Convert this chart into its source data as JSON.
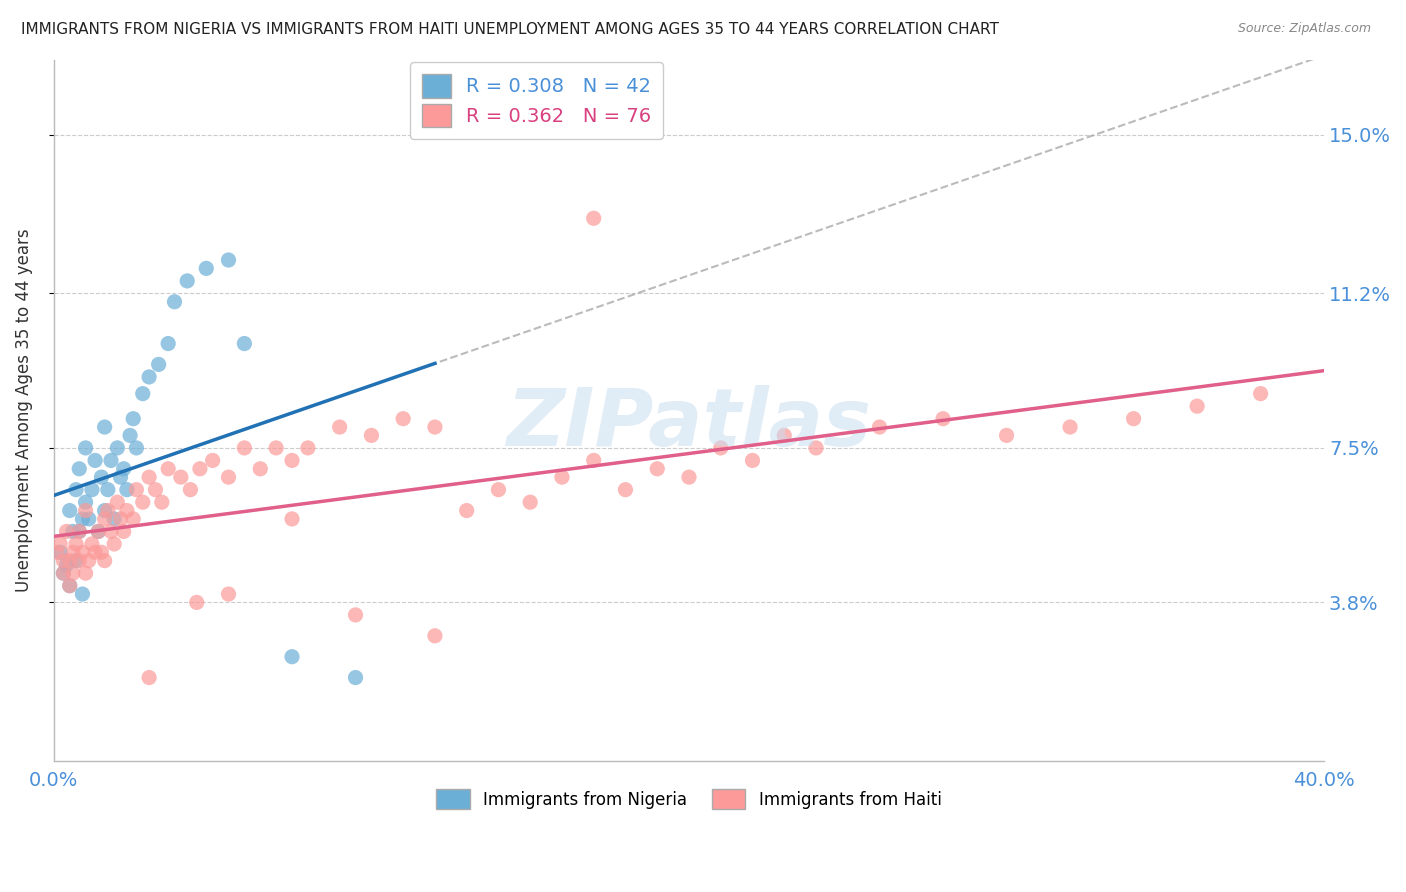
{
  "title": "IMMIGRANTS FROM NIGERIA VS IMMIGRANTS FROM HAITI UNEMPLOYMENT AMONG AGES 35 TO 44 YEARS CORRELATION CHART",
  "source": "Source: ZipAtlas.com",
  "ylabel": "Unemployment Among Ages 35 to 44 years",
  "xlim": [
    0.0,
    0.4
  ],
  "ylim": [
    0.0,
    0.168
  ],
  "yticks": [
    0.038,
    0.075,
    0.112,
    0.15
  ],
  "ytick_labels": [
    "3.8%",
    "7.5%",
    "11.2%",
    "15.0%"
  ],
  "nigeria_R": 0.308,
  "nigeria_N": 42,
  "haiti_R": 0.362,
  "haiti_N": 76,
  "nigeria_color": "#6baed6",
  "haiti_color": "#fb9a99",
  "nigeria_line_color": "#2171b5",
  "haiti_line_color": "#e0608a",
  "dashed_line_color": "#aaaaaa",
  "watermark": "ZIPatlas",
  "nigeria_x": [
    0.002,
    0.003,
    0.004,
    0.005,
    0.005,
    0.006,
    0.007,
    0.007,
    0.008,
    0.008,
    0.009,
    0.009,
    0.01,
    0.01,
    0.011,
    0.012,
    0.013,
    0.014,
    0.015,
    0.016,
    0.016,
    0.017,
    0.018,
    0.019,
    0.02,
    0.021,
    0.022,
    0.023,
    0.024,
    0.025,
    0.026,
    0.028,
    0.03,
    0.033,
    0.036,
    0.038,
    0.042,
    0.048,
    0.055,
    0.06,
    0.075,
    0.095
  ],
  "nigeria_y": [
    0.05,
    0.045,
    0.047,
    0.06,
    0.042,
    0.055,
    0.065,
    0.048,
    0.07,
    0.055,
    0.058,
    0.04,
    0.062,
    0.075,
    0.058,
    0.065,
    0.072,
    0.055,
    0.068,
    0.08,
    0.06,
    0.065,
    0.072,
    0.058,
    0.075,
    0.068,
    0.07,
    0.065,
    0.078,
    0.082,
    0.075,
    0.088,
    0.092,
    0.095,
    0.1,
    0.11,
    0.115,
    0.118,
    0.12,
    0.1,
    0.025,
    0.02
  ],
  "haiti_x": [
    0.001,
    0.002,
    0.003,
    0.003,
    0.004,
    0.005,
    0.005,
    0.006,
    0.006,
    0.007,
    0.008,
    0.008,
    0.009,
    0.01,
    0.01,
    0.011,
    0.012,
    0.013,
    0.014,
    0.015,
    0.016,
    0.016,
    0.017,
    0.018,
    0.019,
    0.02,
    0.021,
    0.022,
    0.023,
    0.025,
    0.026,
    0.028,
    0.03,
    0.032,
    0.034,
    0.036,
    0.04,
    0.043,
    0.046,
    0.05,
    0.055,
    0.06,
    0.065,
    0.07,
    0.075,
    0.08,
    0.09,
    0.1,
    0.11,
    0.12,
    0.13,
    0.14,
    0.15,
    0.16,
    0.17,
    0.18,
    0.19,
    0.2,
    0.21,
    0.22,
    0.23,
    0.24,
    0.26,
    0.28,
    0.3,
    0.32,
    0.34,
    0.36,
    0.38,
    0.17,
    0.12,
    0.095,
    0.075,
    0.055,
    0.045,
    0.03
  ],
  "haiti_y": [
    0.05,
    0.052,
    0.048,
    0.045,
    0.055,
    0.042,
    0.048,
    0.05,
    0.045,
    0.052,
    0.048,
    0.055,
    0.05,
    0.045,
    0.06,
    0.048,
    0.052,
    0.05,
    0.055,
    0.05,
    0.058,
    0.048,
    0.06,
    0.055,
    0.052,
    0.062,
    0.058,
    0.055,
    0.06,
    0.058,
    0.065,
    0.062,
    0.068,
    0.065,
    0.062,
    0.07,
    0.068,
    0.065,
    0.07,
    0.072,
    0.068,
    0.075,
    0.07,
    0.075,
    0.072,
    0.075,
    0.08,
    0.078,
    0.082,
    0.08,
    0.06,
    0.065,
    0.062,
    0.068,
    0.072,
    0.065,
    0.07,
    0.068,
    0.075,
    0.072,
    0.078,
    0.075,
    0.08,
    0.082,
    0.078,
    0.08,
    0.082,
    0.085,
    0.088,
    0.13,
    0.03,
    0.035,
    0.058,
    0.04,
    0.038,
    0.02
  ]
}
